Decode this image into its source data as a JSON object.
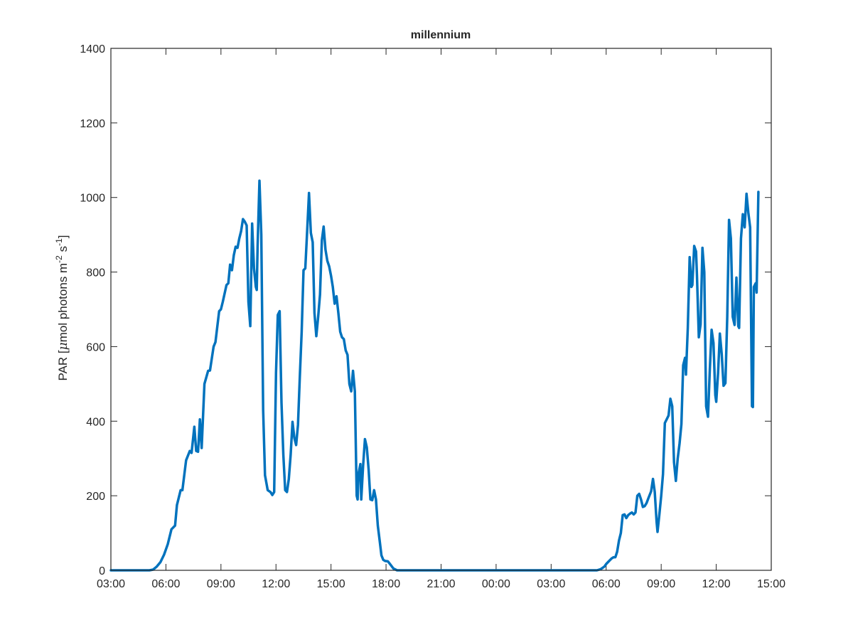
{
  "chart_data": {
    "type": "line",
    "title": "millennium",
    "xlabel": "",
    "ylabel": {
      "prefix": "PAR [",
      "mu": "μ",
      "body": "mol photons m",
      "exp1": "-2",
      "mid": " s",
      "exp2": "-1",
      "suffix": "]"
    },
    "xlim": [
      0,
      36
    ],
    "ylim": [
      0,
      1400
    ],
    "xtick_labels": [
      "03:00",
      "06:00",
      "09:00",
      "12:00",
      "15:00",
      "18:00",
      "21:00",
      "00:00",
      "03:00",
      "06:00",
      "09:00",
      "12:00",
      "15:00"
    ],
    "ytick_labels": [
      "0",
      "200",
      "400",
      "600",
      "800",
      "1000",
      "1200",
      "1400"
    ],
    "series": [
      {
        "color": "#0072BD",
        "points": [
          [
            0,
            0
          ],
          [
            2.1,
            0
          ],
          [
            2.3,
            2
          ],
          [
            2.5,
            10
          ],
          [
            2.7,
            22
          ],
          [
            2.9,
            42
          ],
          [
            3.1,
            70
          ],
          [
            3.3,
            110
          ],
          [
            3.5,
            120
          ],
          [
            3.6,
            175
          ],
          [
            3.8,
            215
          ],
          [
            3.9,
            215
          ],
          [
            4.1,
            295
          ],
          [
            4.3,
            320
          ],
          [
            4.4,
            315
          ],
          [
            4.55,
            385
          ],
          [
            4.65,
            320
          ],
          [
            4.75,
            318
          ],
          [
            4.85,
            405
          ],
          [
            4.95,
            328
          ],
          [
            5.1,
            500
          ],
          [
            5.3,
            535
          ],
          [
            5.4,
            536
          ],
          [
            5.6,
            600
          ],
          [
            5.7,
            612
          ],
          [
            5.9,
            695
          ],
          [
            6.0,
            700
          ],
          [
            6.1,
            720
          ],
          [
            6.3,
            765
          ],
          [
            6.4,
            770
          ],
          [
            6.5,
            820
          ],
          [
            6.6,
            805
          ],
          [
            6.7,
            845
          ],
          [
            6.8,
            868
          ],
          [
            6.9,
            865
          ],
          [
            7.0,
            890
          ],
          [
            7.1,
            910
          ],
          [
            7.2,
            942
          ],
          [
            7.3,
            935
          ],
          [
            7.4,
            925
          ],
          [
            7.5,
            720
          ],
          [
            7.6,
            655
          ],
          [
            7.7,
            930
          ],
          [
            7.8,
            810
          ],
          [
            7.9,
            760
          ],
          [
            7.95,
            752
          ],
          [
            8.0,
            870
          ],
          [
            8.1,
            1045
          ],
          [
            8.2,
            900
          ],
          [
            8.3,
            430
          ],
          [
            8.4,
            255
          ],
          [
            8.55,
            215
          ],
          [
            8.7,
            210
          ],
          [
            8.8,
            202
          ],
          [
            8.9,
            210
          ],
          [
            9.0,
            530
          ],
          [
            9.1,
            685
          ],
          [
            9.2,
            695
          ],
          [
            9.3,
            450
          ],
          [
            9.4,
            310
          ],
          [
            9.5,
            215
          ],
          [
            9.6,
            210
          ],
          [
            9.7,
            245
          ],
          [
            9.8,
            310
          ],
          [
            9.9,
            398
          ],
          [
            10.0,
            355
          ],
          [
            10.1,
            336
          ],
          [
            10.2,
            390
          ],
          [
            10.3,
            520
          ],
          [
            10.4,
            640
          ],
          [
            10.5,
            805
          ],
          [
            10.6,
            810
          ],
          [
            10.7,
            910
          ],
          [
            10.8,
            1012
          ],
          [
            10.9,
            905
          ],
          [
            11.0,
            880
          ],
          [
            11.1,
            690
          ],
          [
            11.2,
            628
          ],
          [
            11.3,
            680
          ],
          [
            11.4,
            740
          ],
          [
            11.5,
            885
          ],
          [
            11.6,
            922
          ],
          [
            11.7,
            860
          ],
          [
            11.8,
            830
          ],
          [
            11.9,
            815
          ],
          [
            12.0,
            790
          ],
          [
            12.1,
            760
          ],
          [
            12.2,
            715
          ],
          [
            12.3,
            735
          ],
          [
            12.4,
            690
          ],
          [
            12.5,
            640
          ],
          [
            12.6,
            625
          ],
          [
            12.7,
            620
          ],
          [
            12.8,
            590
          ],
          [
            12.9,
            578
          ],
          [
            13.0,
            500
          ],
          [
            13.1,
            480
          ],
          [
            13.2,
            535
          ],
          [
            13.3,
            480
          ],
          [
            13.4,
            200
          ],
          [
            13.45,
            190
          ],
          [
            13.5,
            260
          ],
          [
            13.6,
            285
          ],
          [
            13.65,
            190
          ],
          [
            13.75,
            280
          ],
          [
            13.85,
            352
          ],
          [
            13.95,
            330
          ],
          [
            14.05,
            270
          ],
          [
            14.15,
            190
          ],
          [
            14.25,
            188
          ],
          [
            14.35,
            215
          ],
          [
            14.45,
            190
          ],
          [
            14.55,
            120
          ],
          [
            14.65,
            80
          ],
          [
            14.75,
            40
          ],
          [
            14.85,
            28
          ],
          [
            14.95,
            25
          ],
          [
            15.1,
            24
          ],
          [
            15.2,
            18
          ],
          [
            15.4,
            5
          ],
          [
            15.6,
            0
          ],
          [
            26.5,
            0
          ],
          [
            26.7,
            3
          ],
          [
            26.9,
            10
          ],
          [
            27.0,
            17
          ],
          [
            27.1,
            22
          ],
          [
            27.3,
            32
          ],
          [
            27.4,
            35
          ],
          [
            27.5,
            35
          ],
          [
            27.6,
            50
          ],
          [
            27.7,
            80
          ],
          [
            27.8,
            100
          ],
          [
            27.9,
            148
          ],
          [
            28.0,
            150
          ],
          [
            28.1,
            140
          ],
          [
            28.2,
            148
          ],
          [
            28.3,
            152
          ],
          [
            28.4,
            155
          ],
          [
            28.5,
            150
          ],
          [
            28.6,
            155
          ],
          [
            28.7,
            200
          ],
          [
            28.8,
            205
          ],
          [
            28.9,
            190
          ],
          [
            29.0,
            170
          ],
          [
            29.1,
            172
          ],
          [
            29.2,
            180
          ],
          [
            29.3,
            193
          ],
          [
            29.45,
            212
          ],
          [
            29.55,
            245
          ],
          [
            29.65,
            210
          ],
          [
            29.75,
            130
          ],
          [
            29.8,
            103
          ],
          [
            29.9,
            150
          ],
          [
            30.0,
            200
          ],
          [
            30.1,
            258
          ],
          [
            30.2,
            395
          ],
          [
            30.3,
            405
          ],
          [
            30.4,
            415
          ],
          [
            30.5,
            460
          ],
          [
            30.6,
            440
          ],
          [
            30.7,
            290
          ],
          [
            30.8,
            240
          ],
          [
            30.9,
            300
          ],
          [
            31.0,
            340
          ],
          [
            31.1,
            392
          ],
          [
            31.2,
            550
          ],
          [
            31.3,
            570
          ],
          [
            31.35,
            525
          ],
          [
            31.45,
            650
          ],
          [
            31.55,
            840
          ],
          [
            31.65,
            760
          ],
          [
            31.7,
            765
          ],
          [
            31.8,
            870
          ],
          [
            31.9,
            855
          ],
          [
            31.95,
            790
          ],
          [
            32.05,
            625
          ],
          [
            32.15,
            660
          ],
          [
            32.25,
            865
          ],
          [
            32.35,
            800
          ],
          [
            32.45,
            440
          ],
          [
            32.55,
            412
          ],
          [
            32.65,
            540
          ],
          [
            32.75,
            645
          ],
          [
            32.85,
            610
          ],
          [
            32.95,
            470
          ],
          [
            33.0,
            452
          ],
          [
            33.1,
            530
          ],
          [
            33.2,
            635
          ],
          [
            33.3,
            580
          ],
          [
            33.4,
            495
          ],
          [
            33.5,
            502
          ],
          [
            33.6,
            680
          ],
          [
            33.7,
            940
          ],
          [
            33.8,
            890
          ],
          [
            33.9,
            680
          ],
          [
            34.0,
            658
          ],
          [
            34.1,
            785
          ],
          [
            34.2,
            655
          ],
          [
            34.25,
            650
          ],
          [
            34.35,
            890
          ],
          [
            34.45,
            955
          ],
          [
            34.55,
            920
          ],
          [
            34.65,
            1010
          ],
          [
            34.75,
            960
          ],
          [
            34.85,
            920
          ],
          [
            34.95,
            440
          ],
          [
            35.0,
            438
          ],
          [
            35.05,
            760
          ],
          [
            35.15,
            770
          ],
          [
            35.2,
            745
          ],
          [
            35.3,
            1015
          ]
        ]
      }
    ]
  }
}
